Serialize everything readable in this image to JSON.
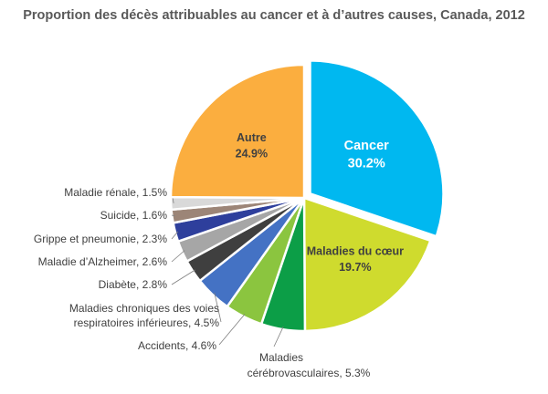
{
  "chart_data": {
    "type": "pie",
    "title": "Proportion des décès attribuables au cancer et à d’autres causes, Canada, 2012",
    "slices": [
      {
        "name": "Cancer",
        "value": 30.2,
        "value_label": "30.2%",
        "color": "#00B8F0",
        "exploded": true
      },
      {
        "name": "Maladies du cœur",
        "value": 19.7,
        "value_label": "19.7%",
        "color": "#CFDB2E"
      },
      {
        "name": "Maladies cérébrovasculaires",
        "lines": [
          "Maladies",
          "cérébrovasculaires, 5.3%"
        ],
        "value": 5.3,
        "color": "#0C9E47"
      },
      {
        "name": "Accidents",
        "lines": [
          "Accidents, 4.6%"
        ],
        "value": 4.6,
        "color": "#8BC53F"
      },
      {
        "name": "Maladies chroniques des voies respiratoires inférieures",
        "lines": [
          "Maladies chroniques des voies",
          "respiratoires inférieures, 4.5%"
        ],
        "value": 4.5,
        "color": "#4472C4"
      },
      {
        "name": "Diabète",
        "lines": [
          "Diabète, 2.8%"
        ],
        "value": 2.8,
        "color": "#3F3F3F"
      },
      {
        "name": "Maladie d’Alzheimer",
        "lines": [
          "Maladie d’Alzheimer, 2.6%"
        ],
        "value": 2.6,
        "color": "#A6A6A6"
      },
      {
        "name": "Grippe et pneumonie",
        "lines": [
          "Grippe et pneumonie, 2.3%"
        ],
        "value": 2.3,
        "color": "#2E3F9C"
      },
      {
        "name": "Suicide",
        "lines": [
          "Suicide, 1.6%"
        ],
        "value": 1.6,
        "color": "#9C8577"
      },
      {
        "name": "Maladie rénale",
        "lines": [
          "Maladie rénale, 1.5%"
        ],
        "value": 1.5,
        "color": "#D9D9D9"
      },
      {
        "name": "Autre",
        "value": 24.9,
        "value_label": "24.9%",
        "color": "#FBAE3F"
      }
    ]
  }
}
